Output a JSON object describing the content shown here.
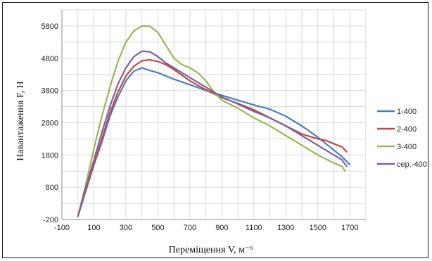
{
  "chart_data": {
    "type": "line",
    "title": "",
    "xlabel": "Переміщення V, м⁻⁶",
    "ylabel": "Навантаження F, Н",
    "xlim": [
      -100,
      1800
    ],
    "ylim": [
      -200,
      6300
    ],
    "x_ticks": [
      "-100",
      "100",
      "300",
      "500",
      "700",
      "900",
      "1100",
      "1300",
      "1500",
      "1700"
    ],
    "y_ticks": [
      "-200",
      "800",
      "1800",
      "2800",
      "3800",
      "4800",
      "5800"
    ],
    "grid": true,
    "legend_position": "right",
    "series": [
      {
        "name": "1-400",
        "color": "#4a7ebb",
        "points": [
          [
            0,
            -100
          ],
          [
            50,
            700
          ],
          [
            100,
            1500
          ],
          [
            150,
            2200
          ],
          [
            200,
            3000
          ],
          [
            250,
            3600
          ],
          [
            300,
            4100
          ],
          [
            350,
            4400
          ],
          [
            400,
            4500
          ],
          [
            450,
            4420
          ],
          [
            500,
            4350
          ],
          [
            550,
            4250
          ],
          [
            600,
            4150
          ],
          [
            700,
            3980
          ],
          [
            800,
            3800
          ],
          [
            900,
            3650
          ],
          [
            1000,
            3500
          ],
          [
            1100,
            3350
          ],
          [
            1200,
            3220
          ],
          [
            1300,
            3000
          ],
          [
            1400,
            2700
          ],
          [
            1500,
            2350
          ],
          [
            1550,
            2150
          ],
          [
            1600,
            1950
          ],
          [
            1650,
            1750
          ],
          [
            1700,
            1500
          ]
        ]
      },
      {
        "name": "2-400",
        "color": "#be4b48",
        "points": [
          [
            0,
            -100
          ],
          [
            50,
            700
          ],
          [
            100,
            1500
          ],
          [
            150,
            2300
          ],
          [
            200,
            3100
          ],
          [
            250,
            3750
          ],
          [
            300,
            4250
          ],
          [
            350,
            4550
          ],
          [
            400,
            4720
          ],
          [
            450,
            4750
          ],
          [
            500,
            4700
          ],
          [
            550,
            4600
          ],
          [
            600,
            4450
          ],
          [
            700,
            4100
          ],
          [
            800,
            3820
          ],
          [
            900,
            3580
          ],
          [
            1000,
            3400
          ],
          [
            1100,
            3200
          ],
          [
            1200,
            2950
          ],
          [
            1300,
            2700
          ],
          [
            1400,
            2450
          ],
          [
            1500,
            2300
          ],
          [
            1550,
            2250
          ],
          [
            1600,
            2150
          ],
          [
            1650,
            2050
          ],
          [
            1680,
            1900
          ]
        ]
      },
      {
        "name": "3-400",
        "color": "#98b954",
        "points": [
          [
            0,
            -100
          ],
          [
            50,
            900
          ],
          [
            100,
            2000
          ],
          [
            150,
            3000
          ],
          [
            200,
            3900
          ],
          [
            250,
            4700
          ],
          [
            300,
            5300
          ],
          [
            350,
            5650
          ],
          [
            400,
            5800
          ],
          [
            450,
            5790
          ],
          [
            500,
            5600
          ],
          [
            550,
            5200
          ],
          [
            600,
            4800
          ],
          [
            650,
            4600
          ],
          [
            700,
            4500
          ],
          [
            750,
            4350
          ],
          [
            800,
            4100
          ],
          [
            850,
            3750
          ],
          [
            900,
            3500
          ],
          [
            1000,
            3250
          ],
          [
            1100,
            2950
          ],
          [
            1200,
            2700
          ],
          [
            1300,
            2400
          ],
          [
            1400,
            2100
          ],
          [
            1500,
            1800
          ],
          [
            1600,
            1550
          ],
          [
            1650,
            1450
          ],
          [
            1670,
            1300
          ]
        ]
      },
      {
        "name": "сер.-400",
        "color": "#7d60a0",
        "points": [
          [
            0,
            -100
          ],
          [
            50,
            800
          ],
          [
            100,
            1650
          ],
          [
            150,
            2500
          ],
          [
            200,
            3300
          ],
          [
            250,
            4000
          ],
          [
            300,
            4500
          ],
          [
            350,
            4850
          ],
          [
            400,
            5020
          ],
          [
            450,
            5000
          ],
          [
            500,
            4850
          ],
          [
            550,
            4650
          ],
          [
            600,
            4500
          ],
          [
            700,
            4200
          ],
          [
            800,
            3900
          ],
          [
            900,
            3600
          ],
          [
            1000,
            3380
          ],
          [
            1100,
            3150
          ],
          [
            1200,
            2950
          ],
          [
            1300,
            2700
          ],
          [
            1400,
            2400
          ],
          [
            1500,
            2100
          ],
          [
            1600,
            1800
          ],
          [
            1650,
            1650
          ],
          [
            1680,
            1450
          ]
        ]
      }
    ]
  }
}
